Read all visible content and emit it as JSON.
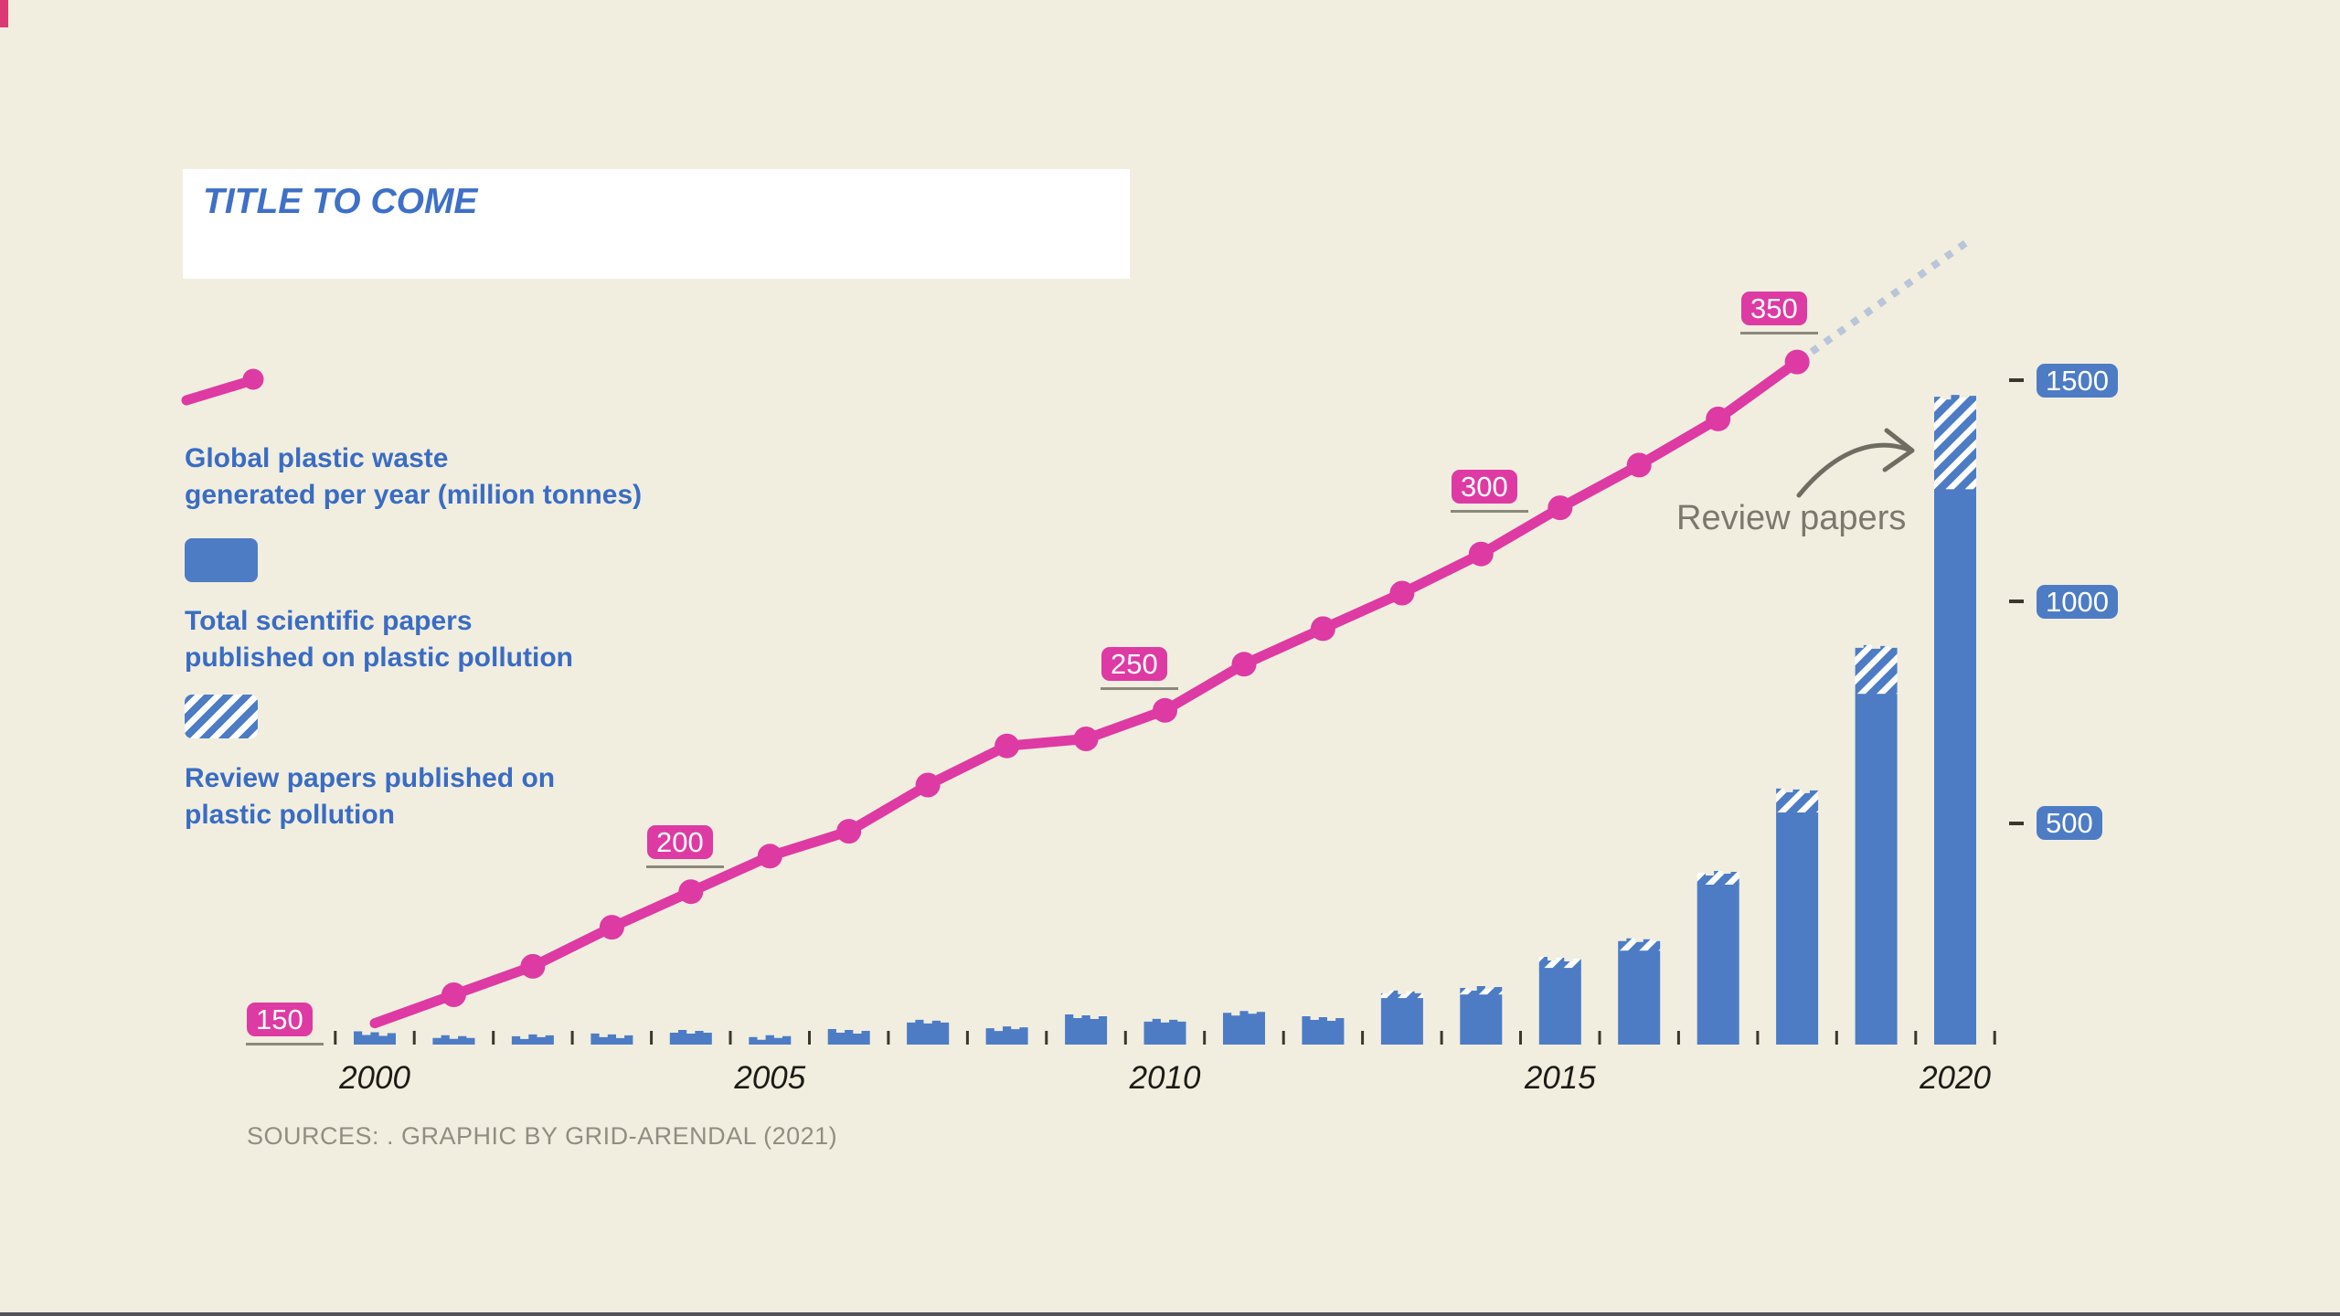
{
  "title": "TITLE TO COME",
  "legend": {
    "items": [
      {
        "icon": "pink-line-dot",
        "label": "Global plastic waste\ngenerated per year (million tonnes)"
      },
      {
        "icon": "blue-solid-swatch",
        "label": "Total scientific papers\npublished on plastic pollution"
      },
      {
        "icon": "blue-hatch-swatch",
        "label": "Review papers published on\nplastic pollution"
      }
    ]
  },
  "annotation": {
    "label": "Review papers"
  },
  "source_text": "SOURCES: . GRAPHIC BY GRID-ARENDAL (2021)",
  "colors": {
    "background": "#f1eee0",
    "title_box_bg": "#ffffff",
    "title_blue": "#3f70c8",
    "bar_blue": "#4d7cc5",
    "text_blue": "#3a6cc3",
    "line_pink": "#de3aa3",
    "annotation_gray": "#7b786c",
    "arrow_gray": "#6f6d62",
    "source_gray": "#908e80",
    "tick_dark": "#3a382d",
    "projection_dash": "#b9c5d8",
    "underline_gray": "#8b897c",
    "year_label_dark": "#1c1b16",
    "corner_mark_pink": "#dd3a74",
    "bottom_edge_gray": "#55535a"
  },
  "chart_data": {
    "type": "combo",
    "x": [
      2000,
      2001,
      2002,
      2003,
      2004,
      2005,
      2006,
      2007,
      2008,
      2009,
      2010,
      2011,
      2012,
      2013,
      2014,
      2015,
      2016,
      2017,
      2018,
      2019,
      2020
    ],
    "series": [
      {
        "name": "Global plastic waste generated per year (million tonnes)",
        "type": "line",
        "values": [
          156,
          164,
          172,
          183,
          193,
          203,
          210,
          223,
          234,
          236,
          244,
          257,
          267,
          277,
          288,
          301,
          313,
          326,
          342,
          null,
          null
        ],
        "labeled_gridlines": [
          150,
          200,
          250,
          300,
          350
        ],
        "projection": "dotted continuation beyond 2018 toward ~380 at 2020"
      },
      {
        "name": "Total scientific papers published on plastic pollution",
        "type": "bar",
        "values": [
          30,
          21,
          23,
          25,
          33,
          21,
          35,
          56,
          41,
          68,
          58,
          76,
          64,
          122,
          132,
          198,
          240,
          392,
          578,
          902,
          1467
        ]
      },
      {
        "name": "Review papers published on plastic pollution (hatched top portion of total bars)",
        "type": "bar",
        "values": [
          0,
          0,
          0,
          0,
          0,
          0,
          0,
          0,
          0,
          0,
          0,
          0,
          5,
          19,
          21,
          27,
          30,
          33,
          56,
          112,
          215
        ]
      }
    ],
    "bar_axis": {
      "side": "right",
      "ticks": [
        500,
        1000,
        1500
      ]
    },
    "x_axis": {
      "labeled_years": [
        2000,
        2005,
        2010,
        2015,
        2020
      ]
    },
    "grid": "off",
    "legend_position": "left"
  }
}
